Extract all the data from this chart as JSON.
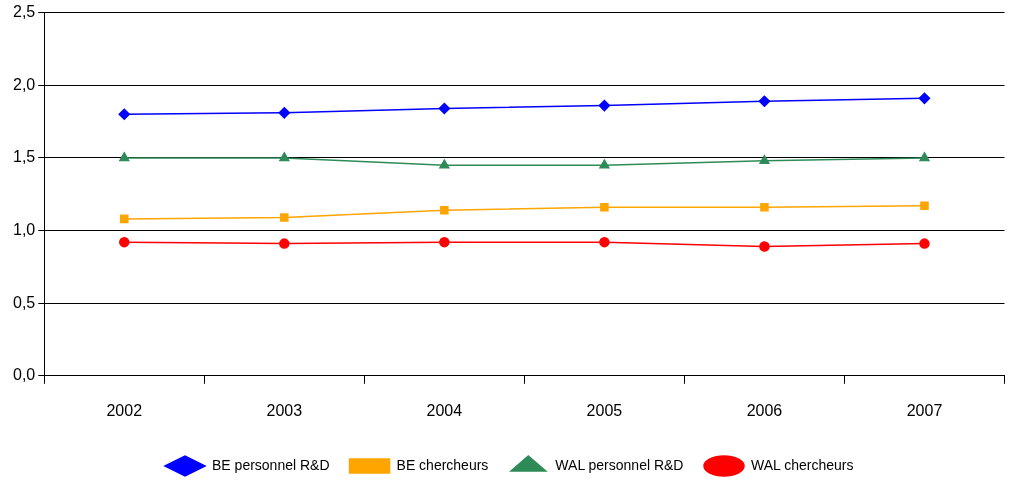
{
  "chart_data": {
    "type": "line",
    "categories": [
      "2002",
      "2003",
      "2004",
      "2005",
      "2006",
      "2007"
    ],
    "series": [
      {
        "name": "BE personnel R&D",
        "color": "#0000ff",
        "marker": "diamond",
        "values": [
          1.8,
          1.81,
          1.84,
          1.86,
          1.89,
          1.91
        ]
      },
      {
        "name": "BE chercheurs",
        "color": "#ffa500",
        "marker": "square",
        "values": [
          1.08,
          1.09,
          1.14,
          1.16,
          1.16,
          1.17
        ]
      },
      {
        "name": "WAL personnel R&D",
        "color": "#2e8b57",
        "marker": "triangle",
        "values": [
          1.5,
          1.5,
          1.45,
          1.45,
          1.48,
          1.5
        ]
      },
      {
        "name": "WAL chercheurs",
        "color": "#ff0000",
        "marker": "circle",
        "values": [
          0.92,
          0.91,
          0.92,
          0.92,
          0.89,
          0.91
        ]
      }
    ],
    "ylim": [
      0,
      2.5
    ],
    "yticks": [
      {
        "value": 0,
        "label": "0,0"
      },
      {
        "value": 0.5,
        "label": "0,5"
      },
      {
        "value": 1,
        "label": "1,0"
      },
      {
        "value": 1.5,
        "label": "1,5"
      },
      {
        "value": 2,
        "label": "2,0"
      },
      {
        "value": 2.5,
        "label": "2,5"
      }
    ],
    "grid": "y",
    "legend": "bottom",
    "line_style": "solid"
  }
}
